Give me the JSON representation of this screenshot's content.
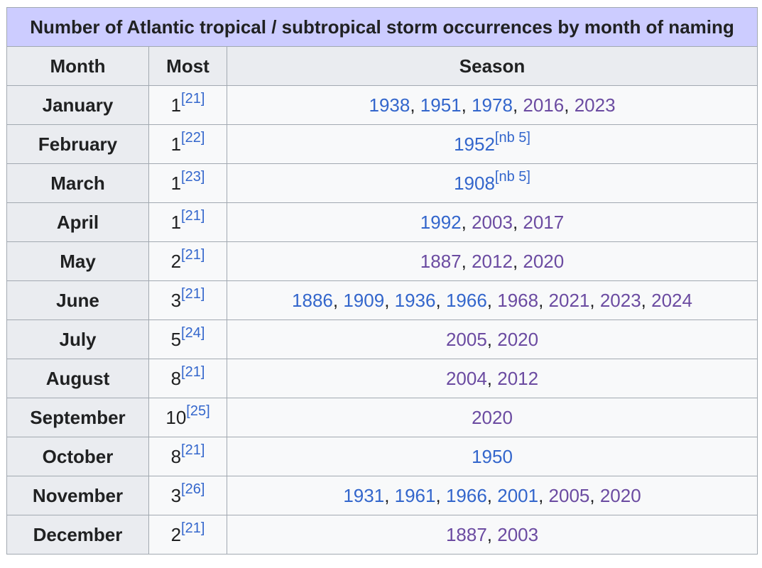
{
  "table": {
    "caption": "Number of Atlantic tropical / subtropical storm occurrences by month of naming",
    "headers": [
      "Month",
      "Most",
      "Season"
    ],
    "link_colors": {
      "unvisited": "#3366cc",
      "visited": "#6b4ba1"
    },
    "rows": [
      {
        "month": "January",
        "most": "1",
        "ref": "[21]",
        "seasons": [
          {
            "year": "1938",
            "visited": false
          },
          {
            "year": "1951",
            "visited": false
          },
          {
            "year": "1978",
            "visited": false
          },
          {
            "year": "2016",
            "visited": true
          },
          {
            "year": "2023",
            "visited": true
          }
        ]
      },
      {
        "month": "February",
        "most": "1",
        "ref": "[22]",
        "seasons": [
          {
            "year": "1952",
            "visited": false,
            "note": "[nb 5]"
          }
        ]
      },
      {
        "month": "March",
        "most": "1",
        "ref": "[23]",
        "seasons": [
          {
            "year": "1908",
            "visited": false,
            "note": "[nb 5]"
          }
        ]
      },
      {
        "month": "April",
        "most": "1",
        "ref": "[21]",
        "seasons": [
          {
            "year": "1992",
            "visited": false
          },
          {
            "year": "2003",
            "visited": true
          },
          {
            "year": "2017",
            "visited": true
          }
        ]
      },
      {
        "month": "May",
        "most": "2",
        "ref": "[21]",
        "seasons": [
          {
            "year": "1887",
            "visited": true
          },
          {
            "year": "2012",
            "visited": true
          },
          {
            "year": "2020",
            "visited": true
          }
        ]
      },
      {
        "month": "June",
        "most": "3",
        "ref": "[21]",
        "seasons": [
          {
            "year": "1886",
            "visited": false
          },
          {
            "year": "1909",
            "visited": false
          },
          {
            "year": "1936",
            "visited": false
          },
          {
            "year": "1966",
            "visited": false
          },
          {
            "year": "1968",
            "visited": true
          },
          {
            "year": "2021",
            "visited": true
          },
          {
            "year": "2023",
            "visited": true
          },
          {
            "year": "2024",
            "visited": true
          }
        ]
      },
      {
        "month": "July",
        "most": "5",
        "ref": "[24]",
        "seasons": [
          {
            "year": "2005",
            "visited": true
          },
          {
            "year": "2020",
            "visited": true
          }
        ]
      },
      {
        "month": "August",
        "most": "8",
        "ref": "[21]",
        "seasons": [
          {
            "year": "2004",
            "visited": true
          },
          {
            "year": "2012",
            "visited": true
          }
        ]
      },
      {
        "month": "September",
        "most": "10",
        "ref": "[25]",
        "seasons": [
          {
            "year": "2020",
            "visited": true
          }
        ]
      },
      {
        "month": "October",
        "most": "8",
        "ref": "[21]",
        "seasons": [
          {
            "year": "1950",
            "visited": false
          }
        ]
      },
      {
        "month": "November",
        "most": "3",
        "ref": "[26]",
        "seasons": [
          {
            "year": "1931",
            "visited": false
          },
          {
            "year": "1961",
            "visited": false
          },
          {
            "year": "1966",
            "visited": false
          },
          {
            "year": "2001",
            "visited": false
          },
          {
            "year": "2005",
            "visited": true
          },
          {
            "year": "2020",
            "visited": true
          }
        ]
      },
      {
        "month": "December",
        "most": "2",
        "ref": "[21]",
        "seasons": [
          {
            "year": "1887",
            "visited": true
          },
          {
            "year": "2003",
            "visited": true
          }
        ]
      }
    ]
  }
}
